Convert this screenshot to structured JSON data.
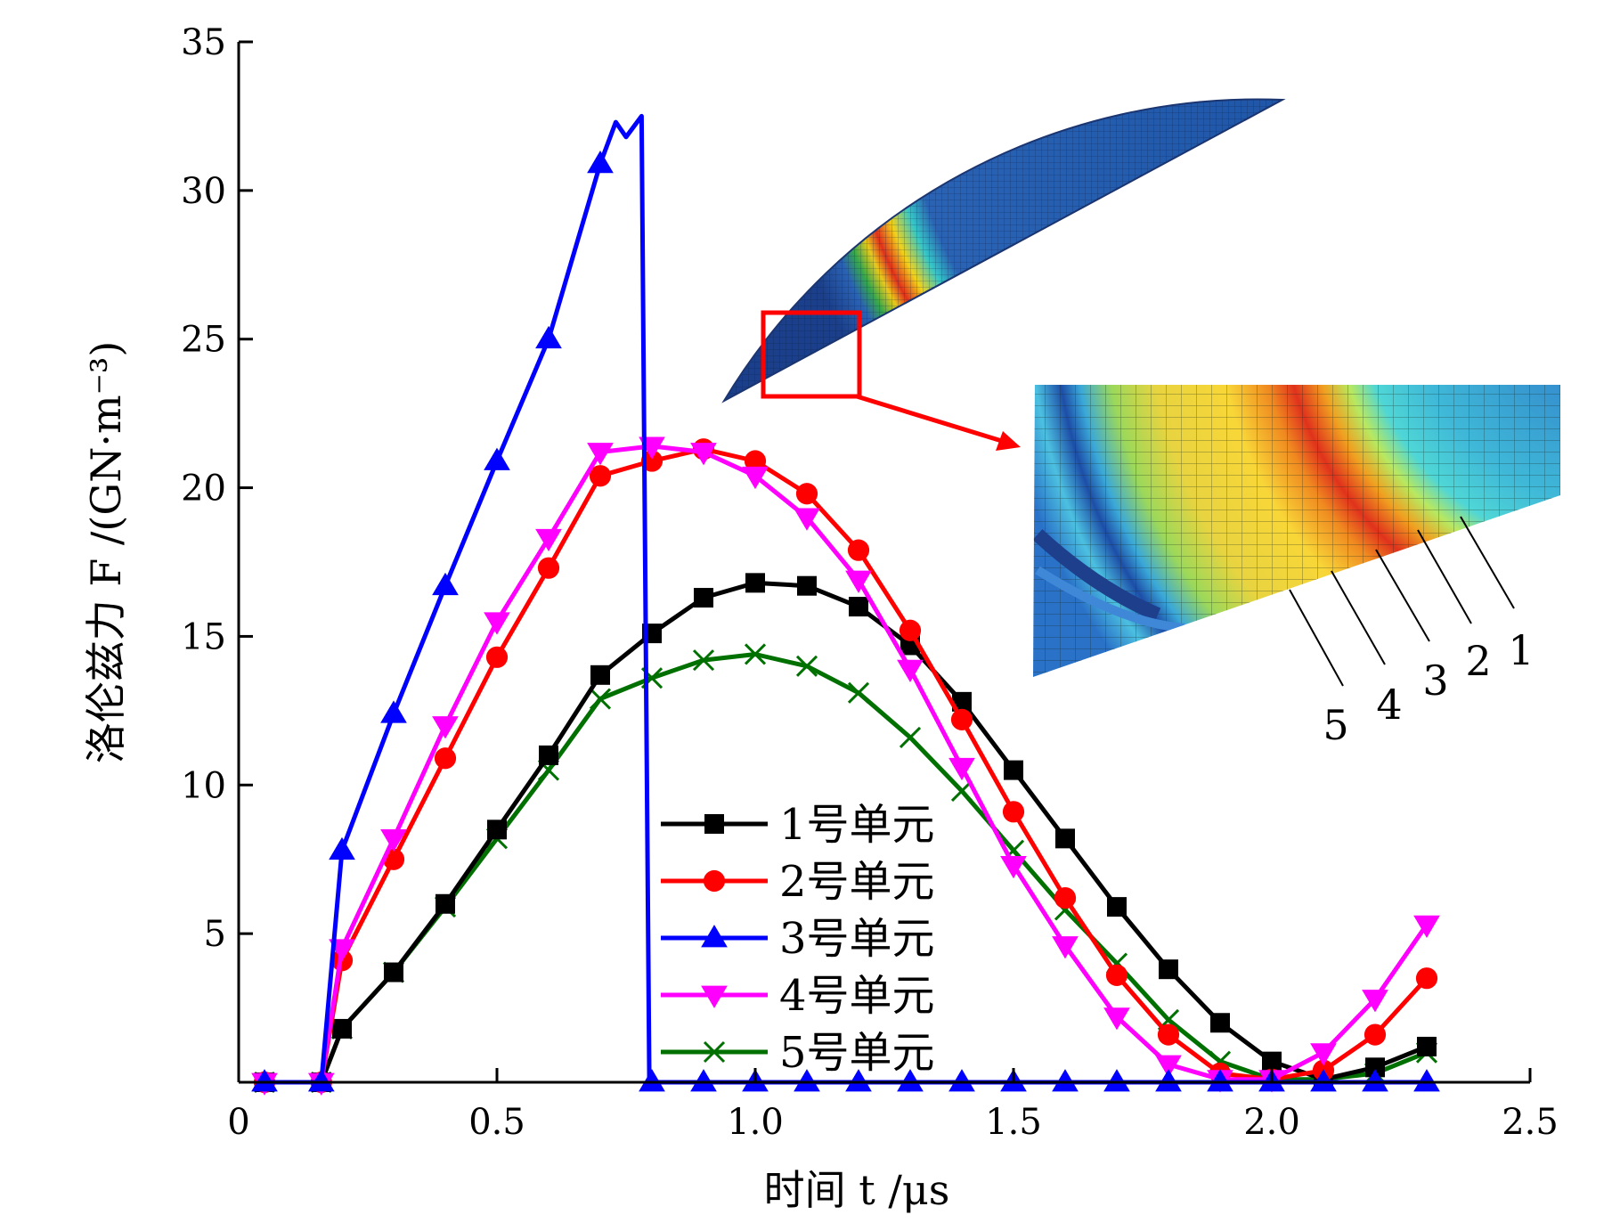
{
  "chart_data": {
    "type": "line",
    "title": "",
    "xlabel": "时间 t /μs",
    "ylabel": "洛伦兹力 F /(GN·m⁻³)",
    "xlim": [
      0,
      2.5
    ],
    "ylim": [
      0,
      35
    ],
    "x_ticks": [
      "0",
      "0.5",
      "1.0",
      "1.5",
      "2.0",
      "2.5"
    ],
    "y_ticks": [
      "5",
      "10",
      "15",
      "20",
      "25",
      "30",
      "35"
    ],
    "grid": false,
    "legend_position": "bottom-center",
    "series": [
      {
        "name": "1号单元",
        "color": "#000000",
        "marker": "square",
        "x": [
          0.05,
          0.16,
          0.2,
          0.3,
          0.4,
          0.5,
          0.6,
          0.7,
          0.8,
          0.9,
          1.0,
          1.1,
          1.2,
          1.3,
          1.4,
          1.5,
          1.6,
          1.7,
          1.8,
          1.9,
          2.0,
          2.1,
          2.2,
          2.3
        ],
        "y": [
          0,
          0,
          1.8,
          3.7,
          6.0,
          8.5,
          11.0,
          13.7,
          15.1,
          16.3,
          16.8,
          16.7,
          16.0,
          14.7,
          12.8,
          10.5,
          8.2,
          5.9,
          3.8,
          2.0,
          0.7,
          0.1,
          0.5,
          1.2
        ]
      },
      {
        "name": "2号单元",
        "color": "#ff0000",
        "marker": "circle",
        "x": [
          0.05,
          0.16,
          0.2,
          0.3,
          0.4,
          0.5,
          0.6,
          0.7,
          0.8,
          0.9,
          1.0,
          1.1,
          1.2,
          1.3,
          1.4,
          1.5,
          1.6,
          1.7,
          1.8,
          1.9,
          2.0,
          2.1,
          2.2,
          2.3
        ],
        "y": [
          0,
          0,
          4.1,
          7.5,
          10.9,
          14.3,
          17.3,
          20.4,
          20.9,
          21.3,
          20.9,
          19.8,
          17.9,
          15.2,
          12.2,
          9.1,
          6.2,
          3.6,
          1.6,
          0.3,
          0.1,
          0.4,
          1.6,
          3.5
        ]
      },
      {
        "name": "3号单元",
        "color": "#0000ff",
        "marker": "triangle-up",
        "x": [
          0.05,
          0.16,
          0.2,
          0.3,
          0.4,
          0.5,
          0.6,
          0.7,
          0.8,
          0.9,
          1.0,
          1.1,
          1.2,
          1.3,
          1.4,
          1.5,
          1.6,
          1.7,
          1.8,
          1.9,
          2.0,
          2.1,
          2.2,
          2.3
        ],
        "y": [
          0,
          0,
          7.8,
          12.4,
          16.7,
          20.9,
          25.0,
          30.9,
          0,
          0,
          0,
          0,
          0,
          0,
          0,
          0,
          0,
          0,
          0,
          0,
          0,
          0,
          0,
          0
        ]
      },
      {
        "name": "4号单元",
        "color": "#ff00ff",
        "marker": "triangle-down",
        "x": [
          0.05,
          0.16,
          0.2,
          0.3,
          0.4,
          0.5,
          0.6,
          0.7,
          0.8,
          0.9,
          1.0,
          1.1,
          1.2,
          1.3,
          1.4,
          1.5,
          1.6,
          1.7,
          1.8,
          1.9,
          2.0,
          2.1,
          2.2,
          2.3
        ],
        "y": [
          0,
          0,
          4.5,
          8.2,
          12.0,
          15.5,
          18.3,
          21.2,
          21.4,
          21.2,
          20.4,
          19.0,
          16.9,
          13.9,
          10.6,
          7.3,
          4.6,
          2.2,
          0.6,
          0.1,
          0.1,
          1.0,
          2.8,
          5.3
        ]
      },
      {
        "name": "5号单元",
        "color": "#007000",
        "marker": "x",
        "x": [
          0.05,
          0.16,
          0.2,
          0.3,
          0.4,
          0.5,
          0.6,
          0.7,
          0.8,
          0.9,
          1.0,
          1.1,
          1.2,
          1.3,
          1.4,
          1.5,
          1.6,
          1.7,
          1.8,
          1.9,
          2.0,
          2.1,
          2.2,
          2.3
        ],
        "y": [
          0,
          0,
          1.8,
          3.7,
          5.9,
          8.2,
          10.5,
          12.9,
          13.6,
          14.2,
          14.4,
          14.0,
          13.1,
          11.6,
          9.8,
          7.8,
          5.8,
          4.0,
          2.1,
          0.7,
          0.1,
          0.1,
          0.3,
          1.0
        ]
      }
    ],
    "inset_labels": [
      "5",
      "4",
      "3",
      "2",
      "1"
    ]
  }
}
